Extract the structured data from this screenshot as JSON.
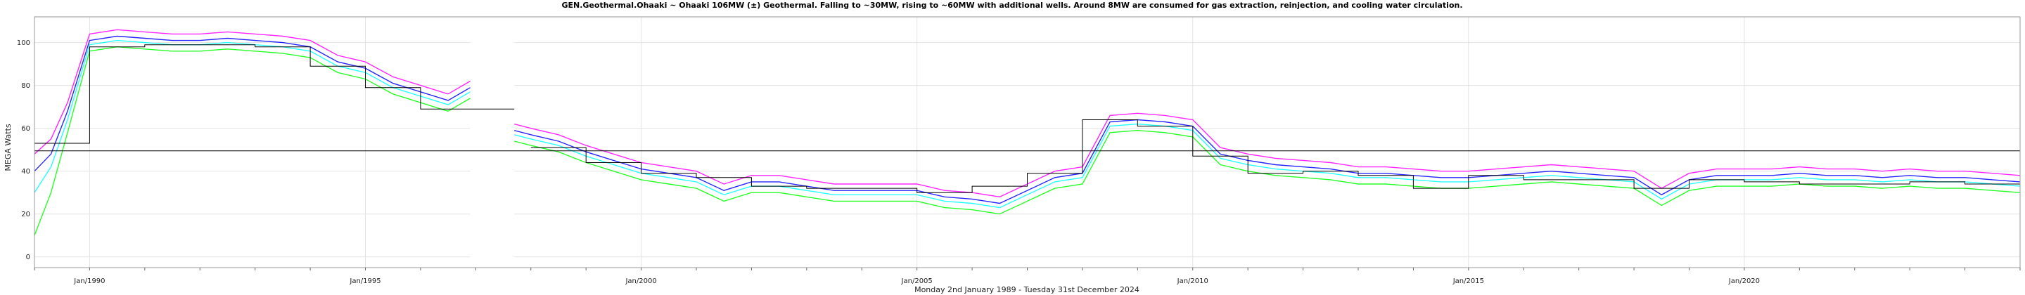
{
  "chart_data": {
    "type": "line",
    "title": "GEN.Geothermal.Ohaaki ~ Ohaaki 106MW (±) Geothermal. Falling to ~30MW, rising to ~60MW with additional wells. Around 8MW are consumed for gas extraction, reinjection, and cooling water circulation.",
    "xlabel": "Monday 2nd January 1989  -  Tuesday 31st December 2024",
    "ylabel": "MEGA Watts",
    "xlim": [
      1989.0,
      2025.0
    ],
    "ylim": [
      -5,
      112
    ],
    "grid": true,
    "x_ticks": [
      {
        "x": 1990.0,
        "label": "Jan/1990"
      },
      {
        "x": 1995.0,
        "label": "Jan/1995"
      },
      {
        "x": 2000.0,
        "label": "Jan/2000"
      },
      {
        "x": 2005.0,
        "label": "Jan/2005"
      },
      {
        "x": 2010.0,
        "label": "Jan/2010"
      },
      {
        "x": 2015.0,
        "label": "Jan/2015"
      },
      {
        "x": 2020.0,
        "label": "Jan/2020"
      }
    ],
    "y_ticks": [
      0,
      20,
      40,
      60,
      80,
      100
    ],
    "overall_average": 49.5,
    "data_gap": [
      1996.9,
      1997.7
    ],
    "series": [
      {
        "color": "#ff00ff",
        "x": [
          1989.0,
          1989.3,
          1989.6,
          1990.0,
          1990.5,
          1991.0,
          1991.5,
          1992.0,
          1992.5,
          1993.0,
          1993.5,
          1994.0,
          1994.5,
          1995.0,
          1995.5,
          1996.0,
          1996.5,
          1996.9,
          1997.7,
          1998.0,
          1998.5,
          1999.0,
          1999.5,
          2000.0,
          2000.5,
          2001.0,
          2001.5,
          2002.0,
          2002.5,
          2003.0,
          2003.5,
          2004.0,
          2004.5,
          2005.0,
          2005.5,
          2006.0,
          2006.5,
          2007.0,
          2007.5,
          2008.0,
          2008.5,
          2009.0,
          2009.5,
          2010.0,
          2010.5,
          2011.0,
          2011.5,
          2012.0,
          2012.5,
          2013.0,
          2013.5,
          2014.0,
          2014.5,
          2015.0,
          2015.5,
          2016.0,
          2016.5,
          2017.0,
          2017.5,
          2018.0,
          2018.5,
          2019.0,
          2019.5,
          2020.0,
          2020.5,
          2021.0,
          2021.5,
          2022.0,
          2022.5,
          2023.0,
          2023.5,
          2024.0,
          2024.5,
          2025.0
        ],
        "y": [
          48,
          55,
          72,
          104,
          106,
          105,
          104,
          104,
          105,
          104,
          103,
          101,
          94,
          91,
          84,
          80,
          76,
          82,
          62,
          60,
          57,
          52,
          48,
          44,
          42,
          40,
          34,
          38,
          38,
          36,
          34,
          34,
          34,
          34,
          31,
          30,
          28,
          34,
          40,
          42,
          66,
          67,
          66,
          64,
          51,
          48,
          46,
          45,
          44,
          42,
          42,
          41,
          40,
          40,
          41,
          42,
          43,
          42,
          41,
          40,
          32,
          39,
          41,
          41,
          41,
          42,
          41,
          41,
          40,
          41,
          40,
          40,
          39,
          38
        ]
      },
      {
        "color": "#0000ff",
        "x": [
          1989.0,
          1989.3,
          1989.6,
          1990.0,
          1990.5,
          1991.0,
          1991.5,
          1992.0,
          1992.5,
          1993.0,
          1993.5,
          1994.0,
          1994.5,
          1995.0,
          1995.5,
          1996.0,
          1996.5,
          1996.9,
          1997.7,
          1998.0,
          1998.5,
          1999.0,
          1999.5,
          2000.0,
          2000.5,
          2001.0,
          2001.5,
          2002.0,
          2002.5,
          2003.0,
          2003.5,
          2004.0,
          2004.5,
          2005.0,
          2005.5,
          2006.0,
          2006.5,
          2007.0,
          2007.5,
          2008.0,
          2008.5,
          2009.0,
          2009.5,
          2010.0,
          2010.5,
          2011.0,
          2011.5,
          2012.0,
          2012.5,
          2013.0,
          2013.5,
          2014.0,
          2014.5,
          2015.0,
          2015.5,
          2016.0,
          2016.5,
          2017.0,
          2017.5,
          2018.0,
          2018.5,
          2019.0,
          2019.5,
          2020.0,
          2020.5,
          2021.0,
          2021.5,
          2022.0,
          2022.5,
          2023.0,
          2023.5,
          2024.0,
          2024.5,
          2025.0
        ],
        "y": [
          40,
          48,
          68,
          101,
          103,
          102,
          101,
          101,
          102,
          101,
          100,
          98,
          91,
          88,
          81,
          77,
          73,
          79,
          59,
          57,
          54,
          49,
          45,
          41,
          39,
          37,
          31,
          35,
          35,
          33,
          31,
          31,
          31,
          31,
          28,
          27,
          25,
          31,
          37,
          39,
          63,
          64,
          63,
          61,
          48,
          45,
          43,
          42,
          41,
          39,
          39,
          38,
          37,
          37,
          38,
          39,
          40,
          39,
          38,
          37,
          29,
          36,
          38,
          38,
          38,
          39,
          38,
          38,
          37,
          38,
          37,
          37,
          36,
          35
        ]
      },
      {
        "color": "#00ffff",
        "x": [
          1989.0,
          1989.3,
          1989.6,
          1990.0,
          1990.5,
          1991.0,
          1991.5,
          1992.0,
          1992.5,
          1993.0,
          1993.5,
          1994.0,
          1994.5,
          1995.0,
          1995.5,
          1996.0,
          1996.5,
          1996.9,
          1997.7,
          1998.0,
          1998.5,
          1999.0,
          1999.5,
          2000.0,
          2000.5,
          2001.0,
          2001.5,
          2002.0,
          2002.5,
          2003.0,
          2003.5,
          2004.0,
          2004.5,
          2005.0,
          2005.5,
          2006.0,
          2006.5,
          2007.0,
          2007.5,
          2008.0,
          2008.5,
          2009.0,
          2009.5,
          2010.0,
          2010.5,
          2011.0,
          2011.5,
          2012.0,
          2012.5,
          2013.0,
          2013.5,
          2014.0,
          2014.5,
          2015.0,
          2015.5,
          2016.0,
          2016.5,
          2017.0,
          2017.5,
          2018.0,
          2018.5,
          2019.0,
          2019.5,
          2020.0,
          2020.5,
          2021.0,
          2021.5,
          2022.0,
          2022.5,
          2023.0,
          2023.5,
          2024.0,
          2024.5,
          2025.0
        ],
        "y": [
          30,
          42,
          64,
          99,
          101,
          100,
          99,
          99,
          100,
          99,
          98,
          96,
          89,
          86,
          79,
          75,
          71,
          77,
          57,
          55,
          52,
          47,
          43,
          39,
          37,
          35,
          29,
          33,
          33,
          31,
          29,
          29,
          29,
          29,
          26,
          25,
          23,
          29,
          35,
          37,
          61,
          62,
          61,
          59,
          46,
          43,
          41,
          40,
          39,
          37,
          37,
          36,
          35,
          35,
          36,
          37,
          38,
          37,
          36,
          35,
          27,
          34,
          36,
          36,
          36,
          37,
          36,
          36,
          35,
          36,
          35,
          35,
          34,
          33
        ]
      },
      {
        "color": "#00ff00",
        "x": [
          1989.0,
          1989.3,
          1989.6,
          1990.0,
          1990.5,
          1991.0,
          1991.5,
          1992.0,
          1992.5,
          1993.0,
          1993.5,
          1994.0,
          1994.5,
          1995.0,
          1995.5,
          1996.0,
          1996.5,
          1996.9,
          1997.7,
          1998.0,
          1998.5,
          1999.0,
          1999.5,
          2000.0,
          2000.5,
          2001.0,
          2001.5,
          2002.0,
          2002.5,
          2003.0,
          2003.5,
          2004.0,
          2004.5,
          2005.0,
          2005.5,
          2006.0,
          2006.5,
          2007.0,
          2007.5,
          2008.0,
          2008.5,
          2009.0,
          2009.5,
          2010.0,
          2010.5,
          2011.0,
          2011.5,
          2012.0,
          2012.5,
          2013.0,
          2013.5,
          2014.0,
          2014.5,
          2015.0,
          2015.5,
          2016.0,
          2016.5,
          2017.0,
          2017.5,
          2018.0,
          2018.5,
          2019.0,
          2019.5,
          2020.0,
          2020.5,
          2021.0,
          2021.5,
          2022.0,
          2022.5,
          2023.0,
          2023.5,
          2024.0,
          2024.5,
          2025.0
        ],
        "y": [
          10,
          30,
          58,
          96,
          98,
          97,
          96,
          96,
          97,
          96,
          95,
          93,
          86,
          83,
          76,
          72,
          68,
          74,
          54,
          52,
          49,
          44,
          40,
          36,
          34,
          32,
          26,
          30,
          30,
          28,
          26,
          26,
          26,
          26,
          23,
          22,
          20,
          26,
          32,
          34,
          58,
          59,
          58,
          56,
          43,
          40,
          38,
          37,
          36,
          34,
          34,
          33,
          32,
          32,
          33,
          34,
          35,
          34,
          33,
          32,
          24,
          31,
          33,
          33,
          33,
          34,
          33,
          33,
          32,
          33,
          32,
          32,
          31,
          30
        ]
      }
    ],
    "annual_average_steps": {
      "x": [
        1989.0,
        1990.0,
        1991.0,
        1992.0,
        1993.0,
        1994.0,
        1995.0,
        1996.0,
        1997.0,
        1997.7,
        1998.0,
        1999.0,
        2000.0,
        2001.0,
        2002.0,
        2003.0,
        2004.0,
        2005.0,
        2006.0,
        2007.0,
        2008.0,
        2009.0,
        2010.0,
        2011.0,
        2012.0,
        2013.0,
        2014.0,
        2015.0,
        2016.0,
        2017.0,
        2018.0,
        2019.0,
        2020.0,
        2021.0,
        2022.0,
        2023.0,
        2024.0,
        2025.0
      ],
      "y": [
        53,
        98,
        99,
        99,
        98,
        89,
        79,
        69,
        69,
        null,
        51,
        44,
        39,
        37,
        33,
        32,
        32,
        30,
        33,
        39,
        64,
        61,
        47,
        39,
        40,
        38,
        32,
        38,
        36,
        36,
        32,
        36,
        35,
        34,
        34,
        35,
        34,
        34
      ]
    }
  }
}
